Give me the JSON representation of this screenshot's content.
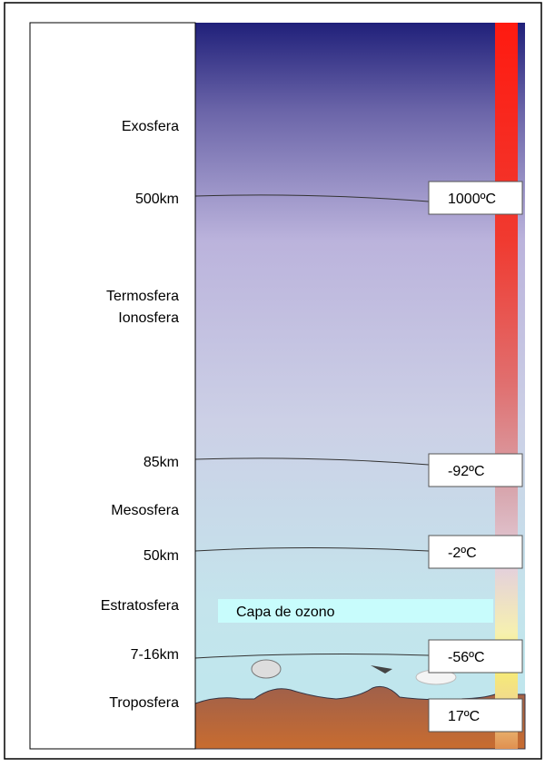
{
  "left_labels": [
    "Exosfera",
    "500km",
    "Termosfera",
    "Ionosfera",
    "85km",
    "Mesosfera",
    "50km",
    "Estratosfera",
    "7-16km",
    "Troposfera"
  ],
  "temperatures": [
    "1000ºC",
    "-92ºC",
    "-2ºC",
    "-56ºC",
    "17ºC"
  ],
  "ozone_label": "Capa de ozono"
}
